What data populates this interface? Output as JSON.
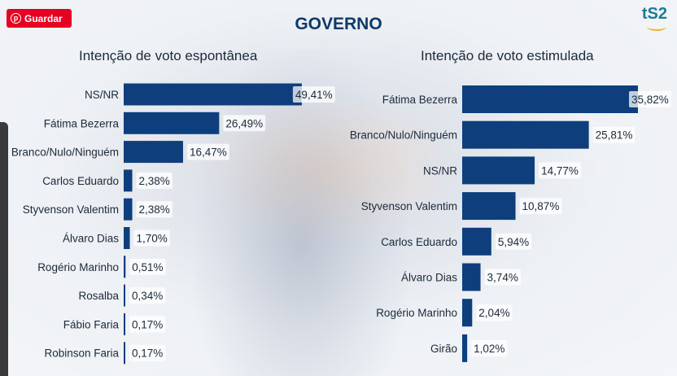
{
  "pin_button": {
    "label": "Guardar",
    "icon": "pinterest-icon"
  },
  "logo": {
    "text": "tS2"
  },
  "header": {
    "title": "GOVERNO"
  },
  "colors": {
    "bar": "#0e3f7c",
    "title": "#0d3a6b"
  },
  "chart_data": [
    {
      "type": "bar",
      "orientation": "horizontal",
      "title": "Intenção de voto espontânea",
      "categories": [
        "NS/NR",
        "Fátima Bezerra",
        "Branco/Nulo/Ninguém",
        "Carlos Eduardo",
        "Styvenson Valentim",
        "Álvaro Dias",
        "Rogério Marinho",
        "Rosalba",
        "Fábio Faria",
        "Robinson Faria"
      ],
      "values": [
        49.41,
        26.49,
        16.47,
        2.38,
        2.38,
        1.7,
        0.51,
        0.34,
        0.17,
        0.17
      ],
      "labels": [
        "49,41%",
        "26,49%",
        "16,47%",
        "2,38%",
        "2,38%",
        "1,70%",
        "0,51%",
        "0,34%",
        "0,17%",
        "0,17%"
      ],
      "xlim": [
        0,
        50
      ]
    },
    {
      "type": "bar",
      "orientation": "horizontal",
      "title": "Intenção de voto estimulada",
      "categories": [
        "Fátima Bezerra",
        "Branco/Nulo/Ninguém",
        "NS/NR",
        "Styvenson Valentim",
        "Carlos Eduardo",
        "Álvaro Dias",
        "Rogério Marinho",
        "Girão"
      ],
      "values": [
        35.82,
        25.81,
        14.77,
        10.87,
        5.94,
        3.74,
        2.04,
        1.02
      ],
      "labels": [
        "35,82%",
        "25,81%",
        "14,77%",
        "10,87%",
        "5,94%",
        "3,74%",
        "2,04%",
        "1,02%"
      ],
      "xlim": [
        0,
        36
      ]
    }
  ]
}
